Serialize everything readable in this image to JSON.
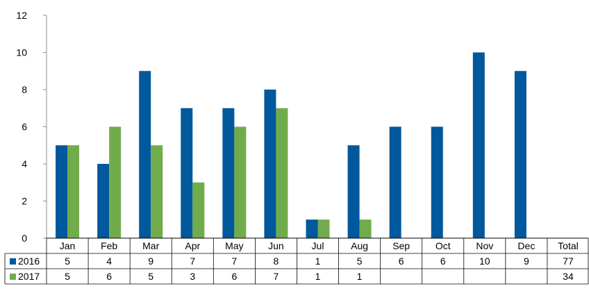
{
  "chart_data": {
    "type": "bar",
    "title": "",
    "xlabel": "",
    "ylabel": "",
    "categories": [
      "Jan",
      "Feb",
      "Mar",
      "Apr",
      "May",
      "Jun",
      "Jul",
      "Aug",
      "Sep",
      "Oct",
      "Nov",
      "Dec"
    ],
    "series": [
      {
        "name": "2016",
        "color": "#00589D",
        "values": [
          5,
          4,
          9,
          7,
          7,
          8,
          1,
          5,
          6,
          6,
          10,
          9
        ],
        "total": 77
      },
      {
        "name": "2017",
        "color": "#71AC4C",
        "values": [
          5,
          6,
          5,
          3,
          6,
          7,
          1,
          1,
          null,
          null,
          null,
          null
        ],
        "total": 34
      }
    ],
    "table_labels": {
      "total_header": "Total"
    },
    "ylim": [
      0,
      12
    ],
    "yticks": [
      0,
      2,
      4,
      6,
      8,
      10,
      12
    ],
    "grid": false,
    "legend": "data table below chart"
  }
}
